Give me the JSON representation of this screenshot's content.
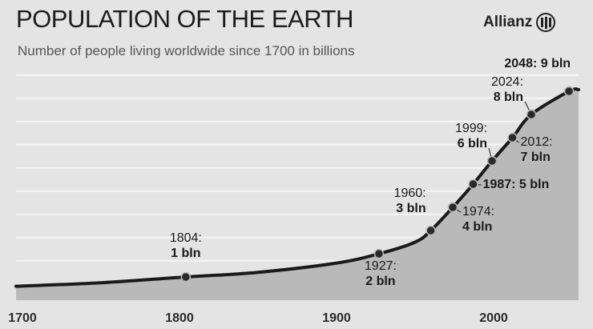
{
  "header": {
    "title": "POPULATION OF THE EARTH",
    "subtitle": "Number of people living worldwide since 1700 in billions",
    "logo_text": "Allianz"
  },
  "colors": {
    "background": "#e4e4e4",
    "area_fill": "#b9b9b9",
    "line": "#1a1a1a",
    "gridline": "#f6f6f6"
  },
  "chart_data": {
    "type": "area",
    "title": "POPULATION OF THE EARTH",
    "subtitle": "Number of people living worldwide since 1700 in billions",
    "xlabel": "",
    "ylabel": "",
    "xlim": [
      1700,
      2055
    ],
    "ylim": [
      0,
      10
    ],
    "x_ticks": [
      1700,
      1800,
      1900,
      2000
    ],
    "grid": true,
    "series": [
      {
        "x": [
          1700,
          1750,
          1804,
          1850,
          1900,
          1927,
          1950,
          1960,
          1974,
          1987,
          1999,
          2012,
          2024,
          2048
        ],
        "values": [
          0.6,
          0.75,
          1,
          1.2,
          1.6,
          2,
          2.5,
          3,
          4,
          5,
          6,
          7,
          8,
          9
        ]
      }
    ],
    "annotations": [
      {
        "year": 1804,
        "line1": "1804:",
        "line2": "1 bln"
      },
      {
        "year": 1927,
        "line1": "1927:",
        "line2": "2 bln"
      },
      {
        "year": 1960,
        "line1": "1960:",
        "line2": "3 bln"
      },
      {
        "year": 1974,
        "line1": "1974:",
        "line2": "4 bln"
      },
      {
        "year": 1987,
        "line1": "1987: 5 bln",
        "line2": ""
      },
      {
        "year": 1999,
        "line1": "1999:",
        "line2": "6 bln"
      },
      {
        "year": 2012,
        "line1": "2012:",
        "line2": "7 bln"
      },
      {
        "year": 2024,
        "line1": "2024:",
        "line2": "8 bln"
      },
      {
        "year": 2048,
        "line1": "2048: 9 bln",
        "line2": ""
      }
    ]
  }
}
